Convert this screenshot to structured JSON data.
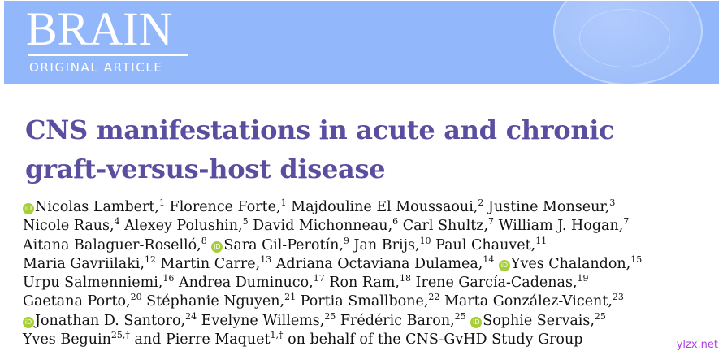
{
  "header": {
    "journal_logo": "BRAIN",
    "article_type": "ORIGINAL ARTICLE",
    "banner_color": "#93b7fb"
  },
  "title": {
    "line1": "CNS manifestations in acute and chronic",
    "line2": "graft-versus-host disease",
    "color": "#5a4ea0"
  },
  "orcid_icon": {
    "label": "iD",
    "color": "#a6ce39"
  },
  "authors": [
    [
      {
        "name": "Nicolas Lambert,",
        "sup": "1",
        "orcid": true
      },
      {
        "name": " Florence Forte,",
        "sup": "1"
      },
      {
        "name": " Majdouline El Moussaoui,",
        "sup": "2"
      },
      {
        "name": " Justine Monseur,",
        "sup": "3"
      }
    ],
    [
      {
        "name": "Nicole Raus,",
        "sup": "4"
      },
      {
        "name": " Alexey Polushin,",
        "sup": "5"
      },
      {
        "name": " David Michonneau,",
        "sup": "6"
      },
      {
        "name": " Carl Shultz,",
        "sup": "7"
      },
      {
        "name": " William J. Hogan,",
        "sup": "7"
      }
    ],
    [
      {
        "name": "Aitana Balaguer-Roselló,",
        "sup": "8"
      },
      {
        "name": " ",
        "sup": ""
      },
      {
        "name": "Sara Gil-Perotín,",
        "sup": "9",
        "orcid": true
      },
      {
        "name": " Jan Brijs,",
        "sup": "10"
      },
      {
        "name": " Paul Chauvet,",
        "sup": "11"
      }
    ],
    [
      {
        "name": "Maria Gavriilaki,",
        "sup": "12"
      },
      {
        "name": " Martin Carre,",
        "sup": "13"
      },
      {
        "name": " Adriana Octaviana Dulamea,",
        "sup": "14"
      },
      {
        "name": " ",
        "sup": ""
      },
      {
        "name": "Yves Chalandon,",
        "sup": "15",
        "orcid": true
      }
    ],
    [
      {
        "name": "Urpu Salmenniemi,",
        "sup": "16"
      },
      {
        "name": " Andrea Duminuco,",
        "sup": "17"
      },
      {
        "name": " Ron Ram,",
        "sup": "18"
      },
      {
        "name": " Irene García-Cadenas,",
        "sup": "19"
      }
    ],
    [
      {
        "name": "Gaetana Porto,",
        "sup": "20"
      },
      {
        "name": " Stéphanie Nguyen,",
        "sup": "21"
      },
      {
        "name": " Portia Smallbone,",
        "sup": "22"
      },
      {
        "name": " Marta González-Vicent,",
        "sup": "23"
      }
    ],
    [
      {
        "name": "Jonathan D. Santoro,",
        "sup": "24",
        "orcid": true
      },
      {
        "name": " Evelyne Willems,",
        "sup": "25"
      },
      {
        "name": " Frédéric Baron,",
        "sup": "25"
      },
      {
        "name": " ",
        "sup": ""
      },
      {
        "name": "Sophie Servais,",
        "sup": "25",
        "orcid": true
      }
    ],
    [
      {
        "name": "Yves Beguin",
        "sup": "25,†"
      },
      {
        "name": " and Pierre Maquet",
        "sup": "1,†"
      },
      {
        "name": " on behalf of the CNS-GvHD Study Group",
        "sup": ""
      }
    ]
  ],
  "watermark": "ylzx.net"
}
